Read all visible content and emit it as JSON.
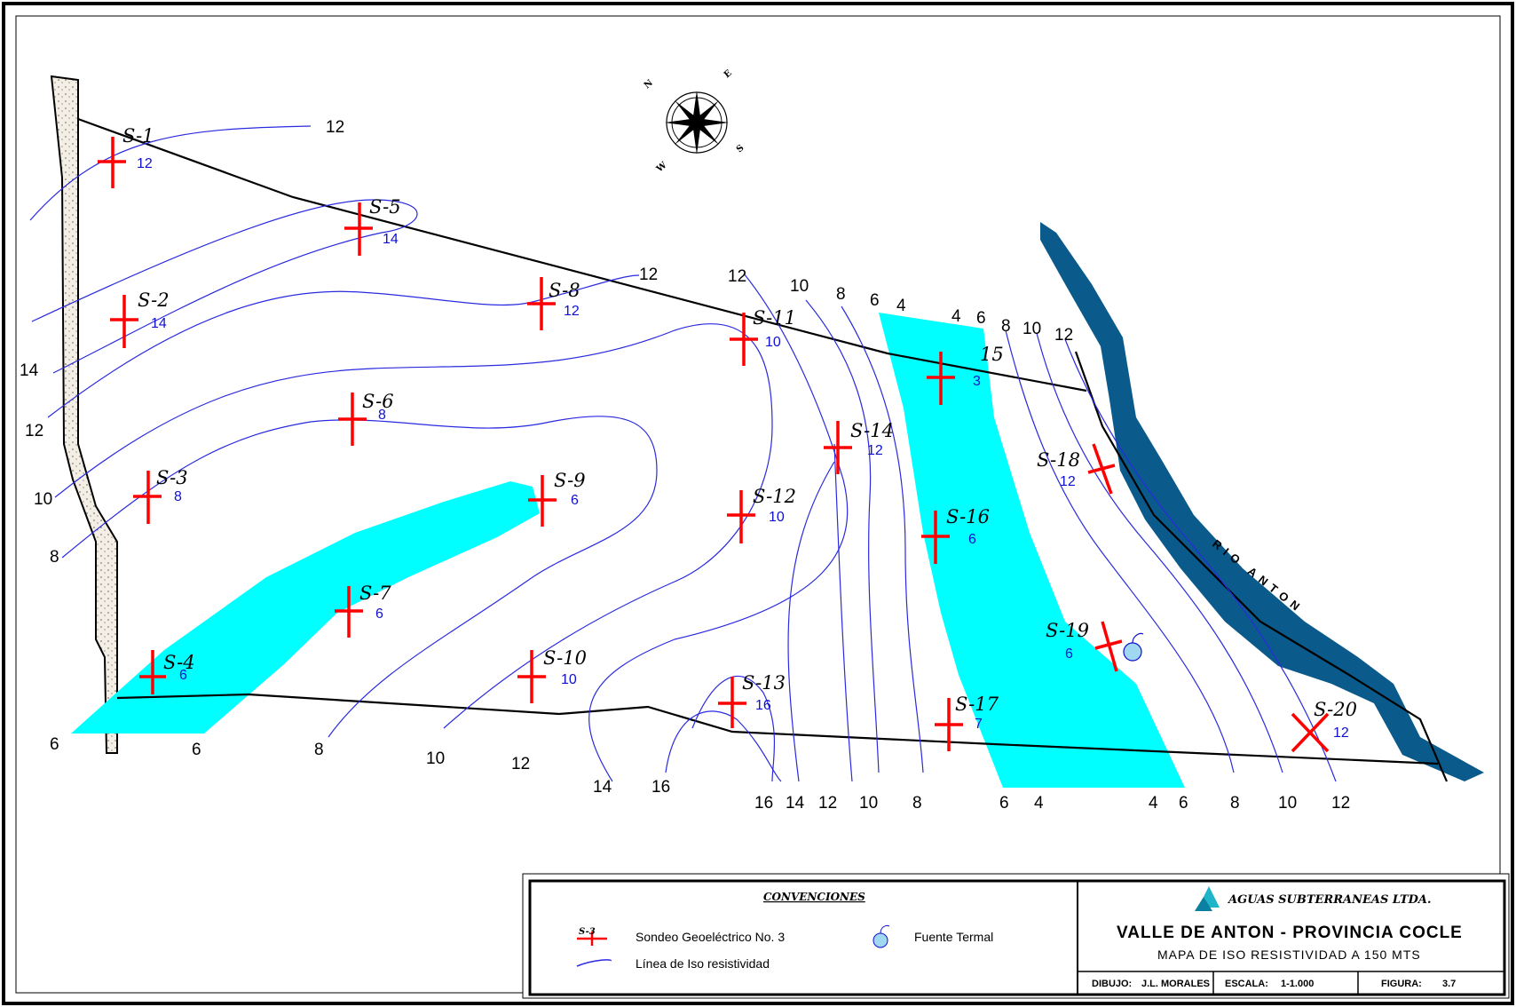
{
  "stations": [
    {
      "id": "S-1",
      "value": "12"
    },
    {
      "id": "S-2",
      "value": "14"
    },
    {
      "id": "S-3",
      "value": "8"
    },
    {
      "id": "S-4",
      "value": "6"
    },
    {
      "id": "S-5",
      "value": "14"
    },
    {
      "id": "S-6",
      "value": "8"
    },
    {
      "id": "S-7",
      "value": "6"
    },
    {
      "id": "S-8",
      "value": "12"
    },
    {
      "id": "S-9",
      "value": "6"
    },
    {
      "id": "S-10",
      "value": "10"
    },
    {
      "id": "S-11",
      "value": "10"
    },
    {
      "id": "S-12",
      "value": "10"
    },
    {
      "id": "S-13",
      "value": "16"
    },
    {
      "id": "S-14",
      "value": "12"
    },
    {
      "id": "15",
      "value": "3"
    },
    {
      "id": "S-16",
      "value": "6"
    },
    {
      "id": "S-17",
      "value": "7"
    },
    {
      "id": "S-18",
      "value": "12"
    },
    {
      "id": "S-19",
      "value": "6"
    },
    {
      "id": "S-20",
      "value": "12"
    }
  ],
  "isoline_labels": [
    "12",
    "14",
    "12",
    "10",
    "8",
    "6",
    "6",
    "8",
    "10",
    "12",
    "14",
    "16",
    "16",
    "14",
    "12",
    "10",
    "8",
    "6",
    "4",
    "4",
    "6",
    "8",
    "10",
    "12",
    "12",
    "12",
    "10",
    "8",
    "6",
    "4",
    "4",
    "6",
    "8",
    "10",
    "12"
  ],
  "compass": {
    "n": "N",
    "e": "E",
    "s": "S",
    "w": "W"
  },
  "river_label": "RIO ANTON",
  "legend": {
    "heading": "CONVENCIONES",
    "station_symbol": "S-3",
    "station_text": "Sondeo Geoeléctrico No. 3",
    "isoline_text": "Línea de Iso resistividad",
    "spring_text": "Fuente Termal"
  },
  "title_block": {
    "company": "AGUAS SUBTERRANEAS LTDA.",
    "title": "VALLE DE ANTON - PROVINCIA COCLE",
    "subtitle": "MAPA DE ISO RESISTIVIDAD A 150 MTS",
    "dibujo_label": "DIBUJO:",
    "dibujo_value": "J.L. MORALES",
    "escala_label": "ESCALA:",
    "escala_value": "1-1.000",
    "figura_label": "FIGURA:",
    "figura_value": "3.7"
  },
  "colors": {
    "low_resistivity_zone": "#00ffff",
    "river": "#0a5a8c",
    "isoline": "#2a2ae0",
    "station_marker": "#ff0000",
    "value_text": "#1010d0"
  }
}
